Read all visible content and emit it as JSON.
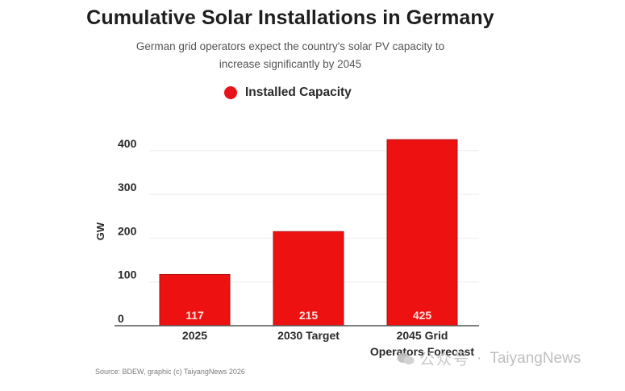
{
  "header": {
    "title": "Cumulative Solar Installations in Germany",
    "subtitle_line1": "German grid operators expect the country's solar PV capacity to",
    "subtitle_line2": "increase significantly by 2045"
  },
  "legend": {
    "label": "Installed Capacity",
    "color": "#e8121a"
  },
  "source": "Source: BDEW, graphic (c) TaiyangNews 2026",
  "watermark": {
    "icon": "wechat-icon",
    "chinese": "公众号",
    "separator": "·",
    "brand": "TaiyangNews"
  },
  "colors": {
    "bar": "#ee1111",
    "bar_edge": "#b30d12",
    "grid": "#eeeeee",
    "axis": "#555555"
  },
  "chart_data": {
    "type": "bar",
    "title": "Cumulative Solar Installations in Germany",
    "subtitle": "German grid operators expect the country's solar PV capacity to increase significantly by 2045",
    "categories": [
      [
        "2025"
      ],
      [
        "2030 Target"
      ],
      [
        "2045 Grid",
        "Operators Forecast"
      ]
    ],
    "series": [
      {
        "name": "Installed Capacity",
        "values": [
          117,
          215,
          425
        ]
      }
    ],
    "data_labels": [
      "117",
      "215",
      "425"
    ],
    "xlabel": "",
    "ylabel": "GW",
    "ylim": [
      0,
      425
    ],
    "yticks": [
      0,
      100,
      200,
      300,
      400
    ],
    "grid": true,
    "legend_position": "top-center"
  }
}
